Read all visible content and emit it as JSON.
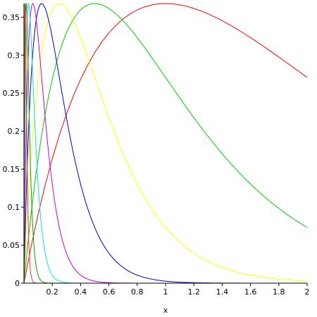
{
  "chart_data": {
    "type": "line",
    "title": "",
    "xlabel": "x",
    "ylabel": "",
    "xlim": [
      0,
      2
    ],
    "ylim": [
      0,
      0.3679
    ],
    "x_ticks": [
      0.2,
      0.4,
      0.6,
      0.8,
      1,
      1.2,
      1.4,
      1.6,
      1.8,
      2
    ],
    "x_tick_labels": [
      "0.2",
      "0.4",
      "0.6",
      "0.8",
      "1",
      "1.2",
      "1.4",
      "1.6",
      "1.8",
      "2"
    ],
    "y_ticks": [
      0,
      0.05,
      0.1,
      0.15,
      0.2,
      0.25,
      0.3,
      0.35
    ],
    "y_tick_labels": [
      "0",
      "0.05",
      "0.1",
      "0.15",
      "0.2",
      "0.25",
      "0.3",
      "0.35"
    ],
    "grid": false,
    "legend": "none",
    "series": [
      {
        "color": "#ff0000",
        "peak_x": 1,
        "x": [
          0,
          0.1,
          0.2,
          0.3,
          0.4,
          0.5,
          0.6,
          0.7,
          0.8,
          0.9,
          1.0,
          1.2,
          1.4,
          1.6,
          1.8,
          2.0
        ],
        "y": [
          0,
          0.0905,
          0.1637,
          0.2222,
          0.2681,
          0.3033,
          0.3293,
          0.3476,
          0.3595,
          0.3659,
          0.3679,
          0.3614,
          0.3452,
          0.323,
          0.2975,
          0.2707
        ]
      },
      {
        "color": "#00cc00",
        "peak_x": 0.5,
        "x": [
          0,
          0.05,
          0.1,
          0.15,
          0.2,
          0.3,
          0.4,
          0.5,
          0.6,
          0.7,
          0.8,
          1.0,
          1.2,
          1.4,
          1.6,
          1.8,
          2.0
        ],
        "y": [
          0,
          0.0905,
          0.1637,
          0.2222,
          0.2681,
          0.3293,
          0.3595,
          0.3679,
          0.3614,
          0.3452,
          0.323,
          0.2707,
          0.2177,
          0.1703,
          0.1304,
          0.0984,
          0.0733
        ]
      },
      {
        "color": "#ffff00",
        "peak_x": 0.25,
        "x": [
          0,
          0.025,
          0.05,
          0.1,
          0.15,
          0.2,
          0.25,
          0.3,
          0.4,
          0.5,
          0.6,
          0.7,
          0.8,
          1.0,
          1.2,
          1.4,
          1.6,
          1.8,
          2.0
        ],
        "y": [
          0,
          0.0905,
          0.1637,
          0.2681,
          0.3293,
          0.3595,
          0.3679,
          0.3614,
          0.323,
          0.2707,
          0.2177,
          0.1703,
          0.1304,
          0.0733,
          0.0395,
          0.0207,
          0.0106,
          0.0054,
          0.0027
        ]
      },
      {
        "color": "#0000cc",
        "peak_x": 0.125,
        "x": [
          0,
          0.025,
          0.05,
          0.075,
          0.1,
          0.125,
          0.15,
          0.2,
          0.25,
          0.3,
          0.4,
          0.5,
          0.6,
          0.7,
          0.8,
          1.0,
          1.2,
          1.4
        ],
        "y": [
          0,
          0.1637,
          0.2681,
          0.3293,
          0.3595,
          0.3679,
          0.3614,
          0.323,
          0.2707,
          0.2177,
          0.1304,
          0.0733,
          0.0395,
          0.0207,
          0.0106,
          0.0027,
          0.0007,
          0.0002
        ]
      },
      {
        "color": "#cc00cc",
        "peak_x": 0.0625,
        "x": [
          0,
          0.0125,
          0.025,
          0.0375,
          0.05,
          0.0625,
          0.075,
          0.1,
          0.125,
          0.15,
          0.2,
          0.25,
          0.3,
          0.35,
          0.4,
          0.5,
          0.6,
          0.7
        ],
        "y": [
          0,
          0.1637,
          0.2681,
          0.3293,
          0.3595,
          0.3679,
          0.3614,
          0.323,
          0.2707,
          0.2177,
          0.1304,
          0.0733,
          0.0395,
          0.0207,
          0.0106,
          0.0027,
          0.0007,
          0.0002
        ]
      },
      {
        "color": "#00e5e5",
        "peak_x": 0.03125,
        "x": [
          0,
          0.00625,
          0.0125,
          0.01875,
          0.025,
          0.03125,
          0.0375,
          0.05,
          0.0625,
          0.075,
          0.1,
          0.125,
          0.15,
          0.175,
          0.2,
          0.25,
          0.3,
          0.35
        ],
        "y": [
          0,
          0.1637,
          0.2681,
          0.3293,
          0.3595,
          0.3679,
          0.3614,
          0.323,
          0.2707,
          0.2177,
          0.1304,
          0.0733,
          0.0395,
          0.0207,
          0.0106,
          0.0027,
          0.0007,
          0.0002
        ]
      },
      {
        "color": "#00aa00",
        "peak_x": 0.0156,
        "x": [
          0,
          0.0031,
          0.0063,
          0.0094,
          0.0125,
          0.0156,
          0.0188,
          0.025,
          0.0313,
          0.0375,
          0.05,
          0.0625,
          0.075,
          0.0875,
          0.1,
          0.125,
          0.15
        ],
        "y": [
          0,
          0.1637,
          0.2681,
          0.3293,
          0.3595,
          0.3679,
          0.3614,
          0.323,
          0.2707,
          0.2177,
          0.1304,
          0.0733,
          0.0395,
          0.0207,
          0.0106,
          0.0027,
          0.0007
        ]
      },
      {
        "color": "#ff3333",
        "peak_x": 0.0078,
        "x": [
          0,
          0.0016,
          0.0031,
          0.0047,
          0.0063,
          0.0078,
          0.0094,
          0.0125,
          0.0156,
          0.0188,
          0.025,
          0.0313,
          0.0375,
          0.0438,
          0.05,
          0.0625,
          0.075
        ],
        "y": [
          0,
          0.1637,
          0.2681,
          0.3293,
          0.3595,
          0.3679,
          0.3614,
          0.323,
          0.2707,
          0.2177,
          0.1304,
          0.0733,
          0.0395,
          0.0207,
          0.0106,
          0.0027,
          0.0007
        ]
      }
    ]
  }
}
